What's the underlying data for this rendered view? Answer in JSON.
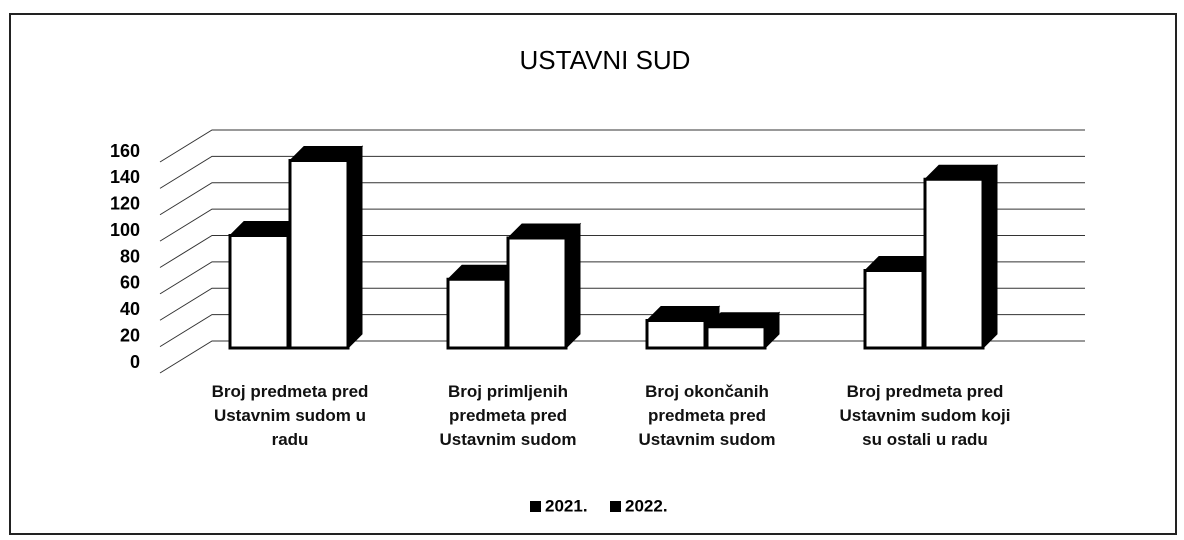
{
  "chart_data": {
    "type": "bar3d",
    "title": "USTAVNI SUD",
    "categories": [
      "Broj predmeta pred\nUstavnim sudom u\nradu",
      "Broj primljenih\npredmeta pred\nUstavnim sudom",
      "Broj okončanih\npredmeta pred\nUstavnim sudom",
      "Broj predmeta pred\nUstavnim sudom koji\nsu ostali u radu"
    ],
    "series": [
      {
        "name": "2021.",
        "color": "#ffffff",
        "values": [
          90,
          55,
          22,
          62
        ]
      },
      {
        "name": "2022.",
        "color": "#ffffff",
        "values": [
          150,
          88,
          17,
          135
        ]
      }
    ],
    "ylim": [
      0,
      160
    ],
    "yticks": [
      0,
      20,
      40,
      60,
      80,
      100,
      120,
      140,
      160
    ],
    "grid": true,
    "legend": "bottom"
  }
}
